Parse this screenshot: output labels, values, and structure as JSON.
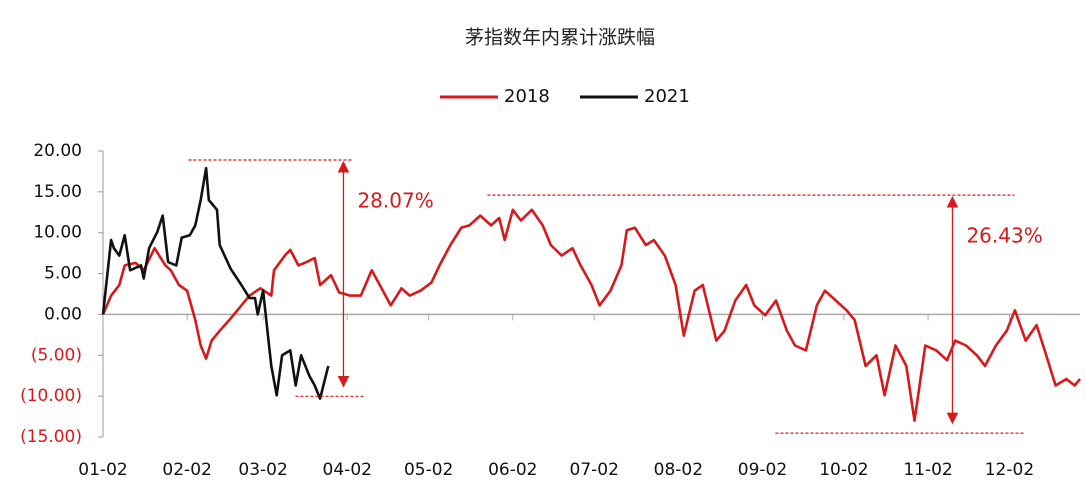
{
  "chart_data": {
    "type": "line",
    "title": "茅指数年内累计涨跌幅",
    "xlim": [
      0,
      360
    ],
    "xticks": [
      {
        "value": 0,
        "label": "01-02"
      },
      {
        "value": 31,
        "label": "02-02"
      },
      {
        "value": 59,
        "label": "03-02"
      },
      {
        "value": 90,
        "label": "04-02"
      },
      {
        "value": 120,
        "label": "05-02"
      },
      {
        "value": 151,
        "label": "06-02"
      },
      {
        "value": 181,
        "label": "07-02"
      },
      {
        "value": 212,
        "label": "08-02"
      },
      {
        "value": 243,
        "label": "09-02"
      },
      {
        "value": 273,
        "label": "10-02"
      },
      {
        "value": 304,
        "label": "11-02"
      },
      {
        "value": 334,
        "label": "12-02"
      }
    ],
    "ylim": [
      -15,
      20
    ],
    "yticks": [
      {
        "value": 20,
        "label": "20.00"
      },
      {
        "value": 15,
        "label": "15.00"
      },
      {
        "value": 10,
        "label": "10.00"
      },
      {
        "value": 5,
        "label": "5.00"
      },
      {
        "value": 0,
        "label": "0.00"
      },
      {
        "value": -5,
        "label": "(5.00)"
      },
      {
        "value": -10,
        "label": "(10.00)"
      },
      {
        "value": -15,
        "label": "(15.00)"
      }
    ],
    "legend": "top",
    "series": [
      {
        "name": "2018",
        "color": "#d7191c",
        "x": [
          0,
          3,
          6,
          8,
          12,
          15,
          19,
          23,
          25,
          28,
          31,
          34,
          36,
          38,
          40,
          43,
          47,
          51,
          54,
          58,
          62,
          63,
          67,
          69,
          72,
          75,
          78,
          80,
          84,
          87,
          91,
          95,
          99,
          102,
          106,
          110,
          113,
          117,
          121,
          124,
          128,
          132,
          135,
          139,
          143,
          146,
          148,
          151,
          154,
          158,
          162,
          165,
          169,
          173,
          176,
          180,
          183,
          187,
          191,
          193,
          196,
          200,
          203,
          207,
          211,
          214,
          218,
          221,
          226,
          229,
          233,
          237,
          240,
          244,
          248,
          252,
          255,
          259,
          263,
          266,
          270,
          274,
          277,
          281,
          285,
          288,
          292,
          296,
          299,
          303,
          307,
          311,
          314,
          318,
          322,
          325,
          329,
          333,
          336,
          340,
          344,
          347,
          351,
          355,
          358,
          360
        ],
        "values": [
          0,
          2.3,
          3.6,
          6,
          6.3,
          5.4,
          8.1,
          6,
          5.4,
          3.6,
          2.9,
          -0.7,
          -3.8,
          -5.4,
          -3.2,
          -2,
          -0.5,
          1.1,
          2.3,
          3.2,
          2.3,
          5.4,
          7.2,
          7.9,
          6,
          6.4,
          6.9,
          3.6,
          4.8,
          2.7,
          2.3,
          2.3,
          5.4,
          3.6,
          1.1,
          3.2,
          2.3,
          2.9,
          3.9,
          6,
          8.5,
          10.6,
          10.9,
          12.1,
          10.9,
          11.8,
          9.1,
          12.8,
          11.5,
          12.8,
          10.9,
          8.5,
          7.2,
          8.1,
          6,
          3.6,
          1.1,
          2.9,
          6,
          10.3,
          10.6,
          8.5,
          9.1,
          7.2,
          3.6,
          -2.6,
          2.9,
          3.6,
          -3.2,
          -2,
          1.7,
          3.6,
          1.1,
          -0.1,
          1.7,
          -2,
          -3.8,
          -4.4,
          1.1,
          2.9,
          1.7,
          0.5,
          -0.7,
          -6.3,
          -5,
          -9.9,
          -3.8,
          -6.3,
          -13,
          -3.8,
          -4.4,
          -5.6,
          -3.2,
          -3.8,
          -5,
          -6.3,
          -3.8,
          -2,
          0.5,
          -3.2,
          -1.3,
          -4.4,
          -8.7,
          -7.9,
          -8.7,
          -7.9
        ]
      },
      {
        "name": "2021",
        "color": "#111111",
        "x": [
          0,
          3,
          4,
          6,
          8,
          10,
          14,
          15,
          17,
          20,
          22,
          24,
          27,
          29,
          32,
          34,
          36,
          38,
          39,
          42,
          43,
          47,
          51,
          54,
          56,
          57,
          59,
          61,
          62,
          64,
          66,
          69,
          71,
          73,
          76,
          78,
          80,
          83
        ],
        "values": [
          0,
          9.1,
          8.1,
          7.2,
          9.7,
          5.4,
          6,
          4.4,
          8.1,
          10.1,
          12.1,
          6.4,
          6,
          9.4,
          9.7,
          10.9,
          14,
          17.9,
          14,
          12.8,
          8.5,
          5.6,
          3.6,
          2,
          2,
          0,
          2.9,
          -3.2,
          -6.3,
          -9.9,
          -5,
          -4.4,
          -8.7,
          -5,
          -7.5,
          -8.7,
          -10.3,
          -6.3
        ]
      }
    ],
    "annotations": [
      {
        "text": "28.07%",
        "x": 88.6,
        "from": 18.9,
        "to": -8.8
      },
      {
        "text": "26.43%",
        "x": 313,
        "from": 14.6,
        "to": -13.3
      }
    ]
  }
}
